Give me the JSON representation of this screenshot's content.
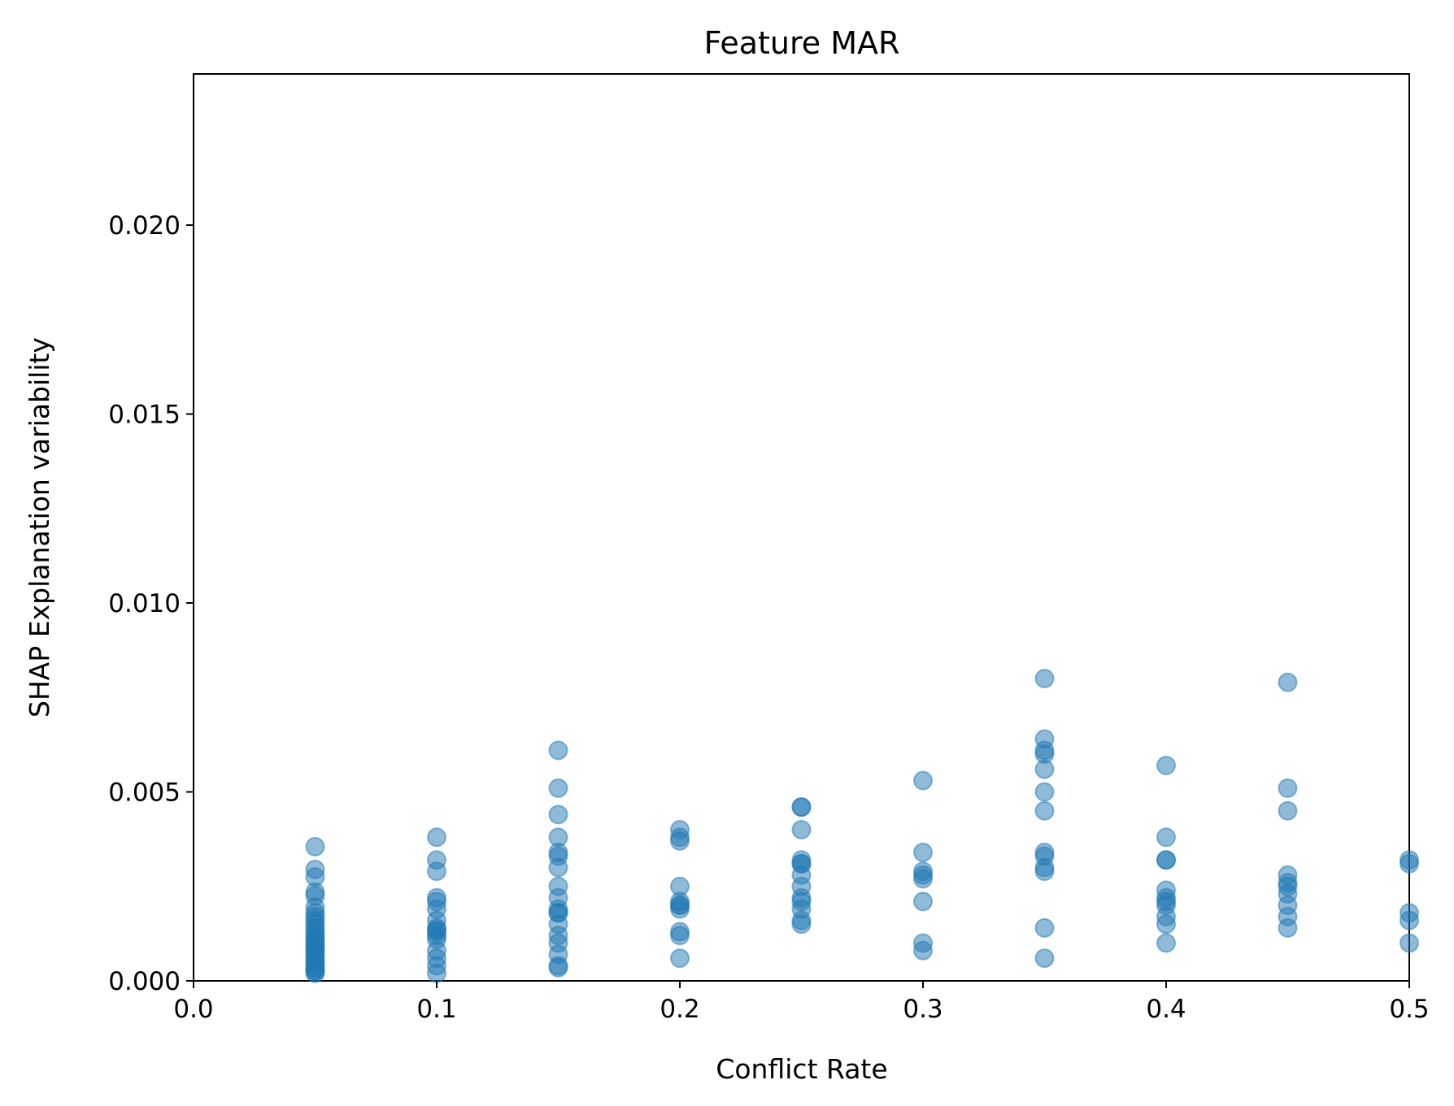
{
  "chart_data": {
    "type": "scatter",
    "title": "Feature MAR",
    "xlabel": "Conflict Rate",
    "ylabel": "SHAP Explanation variability",
    "xlim": [
      0.0,
      0.5
    ],
    "ylim": [
      0.0,
      0.024
    ],
    "xticks": [
      0.0,
      0.1,
      0.2,
      0.3,
      0.4,
      0.5
    ],
    "xtick_labels": [
      "0.0",
      "0.1",
      "0.2",
      "0.3",
      "0.4",
      "0.5"
    ],
    "yticks": [
      0.0,
      0.005,
      0.01,
      0.015,
      0.02
    ],
    "ytick_labels": [
      "0.000",
      "0.005",
      "0.010",
      "0.015",
      "0.020"
    ],
    "grid": false,
    "point_color": "#1f77b4",
    "point_alpha": 0.5,
    "series": [
      {
        "x": [
          0.05,
          0.05,
          0.05,
          0.05,
          0.05,
          0.05,
          0.05,
          0.05,
          0.05,
          0.05,
          0.05,
          0.05,
          0.05,
          0.05,
          0.05,
          0.05,
          0.05,
          0.05,
          0.05,
          0.05,
          0.05,
          0.05,
          0.05,
          0.05,
          0.05,
          0.05,
          0.05,
          0.05,
          0.05,
          0.05,
          0.1,
          0.1,
          0.1,
          0.1,
          0.1,
          0.1,
          0.1,
          0.1,
          0.1,
          0.1,
          0.1,
          0.1,
          0.1,
          0.1,
          0.1,
          0.1,
          0.15,
          0.15,
          0.15,
          0.15,
          0.15,
          0.15,
          0.15,
          0.15,
          0.15,
          0.15,
          0.15,
          0.15,
          0.15,
          0.15,
          0.15,
          0.15,
          0.15,
          0.15,
          0.2,
          0.2,
          0.2,
          0.2,
          0.2,
          0.2,
          0.2,
          0.2,
          0.2,
          0.2,
          0.2,
          0.25,
          0.25,
          0.25,
          0.25,
          0.25,
          0.25,
          0.25,
          0.25,
          0.25,
          0.25,
          0.25,
          0.25,
          0.25,
          0.3,
          0.3,
          0.3,
          0.3,
          0.3,
          0.3,
          0.3,
          0.3,
          0.35,
          0.35,
          0.35,
          0.35,
          0.35,
          0.35,
          0.35,
          0.35,
          0.35,
          0.35,
          0.35,
          0.35,
          0.35,
          0.4,
          0.4,
          0.4,
          0.4,
          0.4,
          0.4,
          0.4,
          0.4,
          0.4,
          0.4,
          0.4,
          0.45,
          0.45,
          0.45,
          0.45,
          0.45,
          0.45,
          0.45,
          0.45,
          0.45,
          0.45,
          0.5,
          0.5,
          0.5,
          0.5,
          0.5
        ],
        "y": [
          0.00355,
          0.00295,
          0.00275,
          0.00235,
          0.00225,
          0.00195,
          0.0018,
          0.0017,
          0.0016,
          0.0015,
          0.0014,
          0.0013,
          0.00122,
          0.00115,
          0.00108,
          0.001,
          0.00092,
          0.00085,
          0.00078,
          0.0007,
          0.00062,
          0.00055,
          0.00048,
          0.0004,
          0.00033,
          0.00028,
          0.00025,
          0.0002,
          0.0005,
          0.0009,
          0.0038,
          0.0032,
          0.0029,
          0.0022,
          0.0021,
          0.0019,
          0.0016,
          0.0014,
          0.00135,
          0.0012,
          0.0011,
          0.0008,
          0.0006,
          0.0004,
          0.0002,
          0.0013,
          0.0061,
          0.0051,
          0.0044,
          0.0038,
          0.0034,
          0.0033,
          0.003,
          0.0025,
          0.0022,
          0.0019,
          0.0018,
          0.0015,
          0.0012,
          0.001,
          0.0007,
          0.0004,
          0.00035,
          0.0018,
          0.004,
          0.0038,
          0.0037,
          0.0025,
          0.0021,
          0.002,
          0.0019,
          0.0013,
          0.0012,
          0.0006,
          0.002,
          0.0046,
          0.0046,
          0.004,
          0.0032,
          0.0031,
          0.0028,
          0.0025,
          0.0022,
          0.0021,
          0.0019,
          0.0016,
          0.0015,
          0.0031,
          0.0053,
          0.0034,
          0.0029,
          0.0028,
          0.0027,
          0.0021,
          0.001,
          0.0008,
          0.008,
          0.0064,
          0.0061,
          0.006,
          0.0056,
          0.005,
          0.0045,
          0.0034,
          0.0033,
          0.003,
          0.0029,
          0.0014,
          0.0006,
          0.0057,
          0.0038,
          0.0032,
          0.0032,
          0.0024,
          0.0022,
          0.0021,
          0.002,
          0.0017,
          0.0015,
          0.001,
          0.0079,
          0.0051,
          0.0045,
          0.0028,
          0.0026,
          0.0025,
          0.0023,
          0.002,
          0.0017,
          0.0014,
          0.0032,
          0.0031,
          0.0018,
          0.0016,
          0.001
        ]
      }
    ]
  }
}
